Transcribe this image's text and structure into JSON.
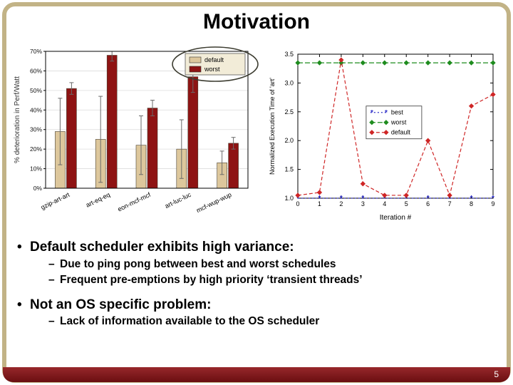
{
  "slide": {
    "title": "Motivation",
    "page_number": "5"
  },
  "bullets": [
    {
      "text": "Default scheduler exhibits high variance:",
      "subs": [
        "Due to ping pong between best and worst schedules",
        "Frequent pre-emptions by high priority ‘transient threads’"
      ]
    },
    {
      "text": "Not an OS specific problem:",
      "subs": [
        "Lack of information available to the OS scheduler"
      ]
    }
  ],
  "chart_data": [
    {
      "type": "bar",
      "title": "",
      "xlabel": "",
      "ylabel": "% deterioration in Perf/Watt",
      "categories": [
        "gzip-art-art",
        "art-eq-eq",
        "eon-mcf-mcf",
        "art-luc-luc",
        "mcf-wup-wup"
      ],
      "series": [
        {
          "name": "default",
          "color": "#ddc79c",
          "values": [
            29,
            25,
            22,
            20,
            13
          ],
          "errors": [
            17,
            22,
            15,
            15,
            6
          ]
        },
        {
          "name": "worst",
          "color": "#8e1313",
          "values": [
            51,
            68,
            41,
            57,
            23
          ],
          "errors": [
            3,
            3,
            4,
            8,
            3
          ]
        }
      ],
      "ylim": [
        0,
        70
      ],
      "ytick_step": 10,
      "yticks": [
        "0%",
        "10%",
        "20%",
        "30%",
        "40%",
        "50%",
        "60%",
        "70%"
      ],
      "grid": "horizontal",
      "legend_position": "top-right",
      "legend_highlight": true
    },
    {
      "type": "line",
      "title": "",
      "xlabel": "Iteration #",
      "ylabel": "Normalized Execution Time of 'art'",
      "x": [
        0,
        1,
        2,
        3,
        4,
        5,
        6,
        7,
        8,
        9
      ],
      "series": [
        {
          "name": "best",
          "color": "#2d2dc8",
          "marker": "star",
          "values": [
            1.0,
            1.0,
            1.0,
            1.0,
            1.0,
            1.0,
            1.0,
            1.0,
            1.0,
            1.0
          ]
        },
        {
          "name": "worst",
          "color": "#1e8c1e",
          "marker": "diamond",
          "values": [
            3.35,
            3.35,
            3.35,
            3.35,
            3.35,
            3.35,
            3.35,
            3.35,
            3.35,
            3.35
          ]
        },
        {
          "name": "default",
          "color": "#cf2626",
          "marker": "diamond",
          "values": [
            1.05,
            1.1,
            3.4,
            1.25,
            1.05,
            1.05,
            2.0,
            1.05,
            2.6,
            2.8
          ]
        }
      ],
      "ylim": [
        1.0,
        3.5
      ],
      "xlim": [
        0,
        9
      ],
      "yticks": [
        "1.0",
        "1.5",
        "2.0",
        "2.5",
        "3.0",
        "3.5"
      ],
      "xticks": [
        "0",
        "1",
        "2",
        "3",
        "4",
        "5",
        "6",
        "7",
        "8",
        "9"
      ],
      "grid": "off",
      "legend_position": "center-right"
    }
  ]
}
